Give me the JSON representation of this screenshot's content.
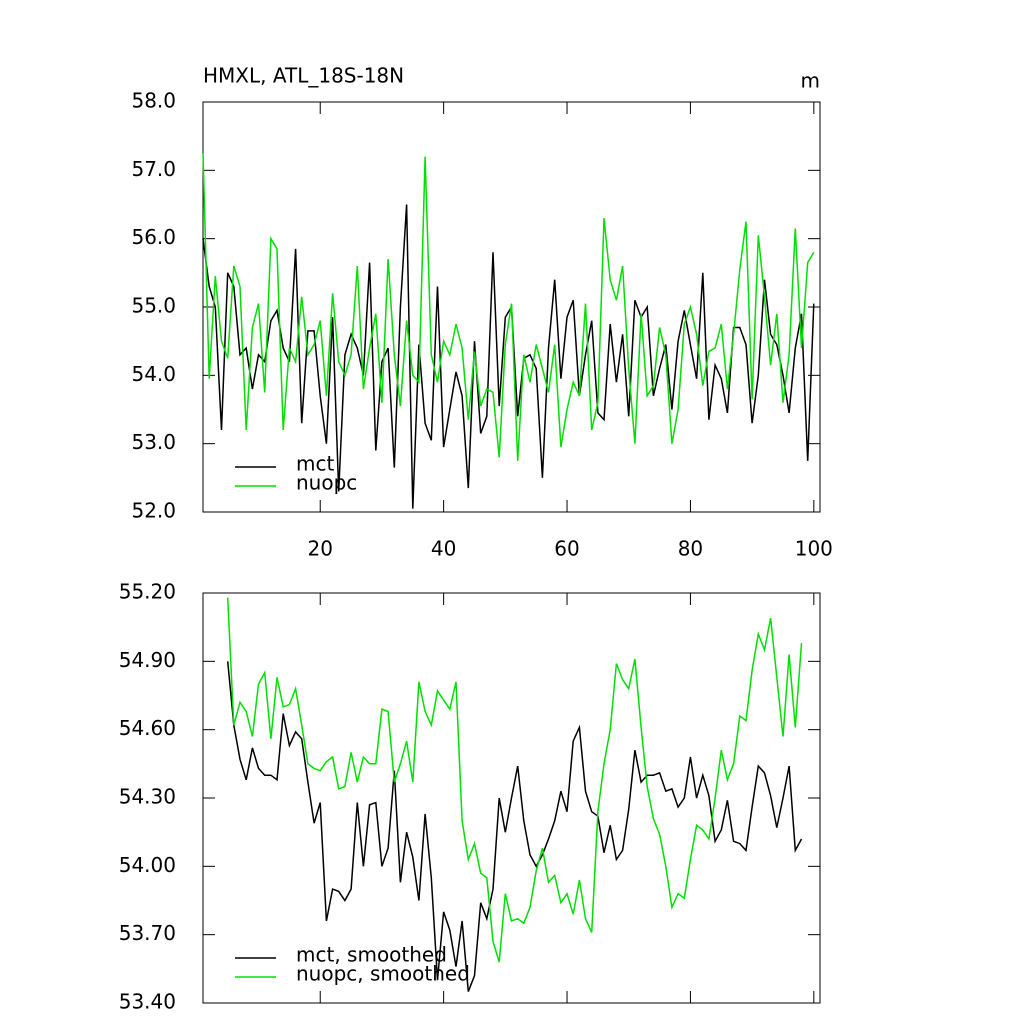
{
  "chart_data": [
    {
      "type": "line",
      "title": "HMXL, ATL_18S-18N",
      "units": "m",
      "x": [
        1,
        2,
        3,
        4,
        5,
        6,
        7,
        8,
        9,
        10,
        11,
        12,
        13,
        14,
        15,
        16,
        17,
        18,
        19,
        20,
        21,
        22,
        23,
        24,
        25,
        26,
        27,
        28,
        29,
        30,
        31,
        32,
        33,
        34,
        35,
        36,
        37,
        38,
        39,
        40,
        41,
        42,
        43,
        44,
        45,
        46,
        47,
        48,
        49,
        50,
        51,
        52,
        53,
        54,
        55,
        56,
        57,
        58,
        59,
        60,
        61,
        62,
        63,
        64,
        65,
        66,
        67,
        68,
        69,
        70,
        71,
        72,
        73,
        74,
        75,
        76,
        77,
        78,
        79,
        80,
        81,
        82,
        83,
        84,
        85,
        86,
        87,
        88,
        89,
        90,
        91,
        92,
        93,
        94,
        95,
        96,
        97,
        98,
        99,
        100
      ],
      "series": [
        {
          "name": "mct",
          "color": "#000000",
          "values": [
            56.0,
            55.3,
            55.0,
            53.2,
            55.5,
            55.3,
            54.3,
            54.4,
            53.8,
            54.3,
            54.2,
            54.8,
            54.95,
            54.4,
            54.2,
            55.85,
            53.3,
            54.65,
            54.65,
            53.7,
            53.0,
            54.85,
            52.3,
            54.3,
            54.6,
            54.4,
            54.0,
            55.65,
            52.9,
            54.2,
            54.4,
            52.65,
            55.0,
            56.5,
            52.05,
            54.45,
            53.3,
            53.05,
            55.3,
            52.95,
            53.5,
            54.05,
            53.7,
            52.35,
            54.5,
            53.15,
            53.4,
            55.8,
            53.55,
            54.85,
            55.0,
            53.4,
            54.25,
            54.3,
            54.1,
            52.5,
            54.4,
            55.4,
            53.95,
            54.85,
            55.1,
            53.7,
            54.3,
            54.8,
            53.45,
            53.35,
            54.75,
            53.9,
            54.6,
            53.4,
            55.1,
            54.85,
            55.0,
            53.7,
            54.1,
            54.45,
            53.5,
            54.5,
            54.95,
            54.45,
            53.95,
            55.5,
            53.35,
            54.15,
            53.95,
            53.45,
            54.7,
            54.7,
            54.45,
            53.3,
            54.0,
            55.4,
            54.6,
            54.45,
            54.0,
            53.45,
            54.4,
            54.9,
            52.75,
            55.05
          ]
        },
        {
          "name": "nuopc",
          "color": "#00e000",
          "values": [
            57.25,
            53.95,
            55.45,
            54.5,
            54.25,
            55.6,
            55.3,
            53.2,
            54.7,
            55.05,
            53.75,
            56.0,
            55.85,
            53.2,
            54.4,
            54.2,
            55.15,
            54.3,
            54.45,
            54.8,
            53.7,
            55.2,
            54.2,
            54.0,
            54.3,
            55.6,
            53.8,
            54.4,
            54.9,
            53.6,
            55.7,
            54.3,
            53.55,
            54.8,
            54.0,
            53.9,
            57.2,
            54.3,
            53.9,
            54.5,
            54.3,
            54.75,
            54.4,
            53.35,
            54.35,
            53.55,
            53.8,
            53.75,
            52.8,
            54.45,
            55.05,
            52.75,
            54.3,
            53.9,
            54.45,
            54.1,
            53.75,
            54.45,
            52.95,
            53.5,
            53.9,
            53.7,
            55.05,
            53.2,
            53.6,
            56.3,
            55.4,
            55.1,
            55.6,
            54.1,
            53.0,
            54.9,
            53.7,
            53.85,
            54.7,
            54.3,
            53.0,
            53.5,
            54.75,
            55.0,
            54.6,
            53.85,
            54.35,
            54.4,
            54.75,
            53.8,
            54.6,
            55.55,
            56.25,
            53.65,
            56.05,
            55.15,
            54.15,
            54.9,
            53.6,
            54.3,
            56.15,
            54.4,
            55.65,
            55.8
          ]
        }
      ],
      "xlim": [
        1,
        101
      ],
      "xticks": [
        20,
        40,
        60,
        80,
        100
      ],
      "show_xtick_labels": true,
      "ylim": [
        52,
        58
      ],
      "yticks": [
        {
          "value": 52,
          "label": "52.0"
        },
        {
          "value": 53,
          "label": "53.0"
        },
        {
          "value": 54,
          "label": "54.0"
        },
        {
          "value": 55,
          "label": "55.0"
        },
        {
          "value": 56,
          "label": "56.0"
        },
        {
          "value": 57,
          "label": "57.0"
        },
        {
          "value": 58,
          "label": "58.0"
        }
      ],
      "legend": "lower left"
    },
    {
      "type": "line",
      "x": [
        5,
        6,
        7,
        8,
        9,
        10,
        11,
        12,
        13,
        14,
        15,
        16,
        17,
        18,
        19,
        20,
        21,
        22,
        23,
        24,
        25,
        26,
        27,
        28,
        29,
        30,
        31,
        32,
        33,
        34,
        35,
        36,
        37,
        38,
        39,
        40,
        41,
        42,
        43,
        44,
        45,
        46,
        47,
        48,
        49,
        50,
        51,
        52,
        53,
        54,
        55,
        56,
        57,
        58,
        59,
        60,
        61,
        62,
        63,
        64,
        65,
        66,
        67,
        68,
        69,
        70,
        71,
        72,
        73,
        74,
        75,
        76,
        77,
        78,
        79,
        80,
        81,
        82,
        83,
        84,
        85,
        86,
        87,
        88,
        89,
        90,
        91,
        92,
        93,
        94,
        95,
        96,
        97,
        98
      ],
      "series": [
        {
          "name": "mct, smoothed",
          "color": "#000000",
          "values": [
            54.9,
            54.62,
            54.47,
            54.38,
            54.52,
            54.43,
            54.4,
            54.4,
            54.38,
            54.67,
            54.53,
            54.59,
            54.56,
            54.37,
            54.19,
            54.28,
            53.76,
            53.9,
            53.89,
            53.85,
            53.9,
            54.28,
            54.0,
            54.27,
            54.28,
            54.0,
            54.08,
            54.42,
            53.93,
            54.15,
            54.04,
            53.85,
            54.23,
            53.95,
            53.5,
            53.8,
            53.72,
            53.56,
            53.76,
            53.45,
            53.52,
            53.84,
            53.77,
            53.9,
            54.3,
            54.15,
            54.3,
            54.44,
            54.2,
            54.05,
            54.0,
            54.05,
            54.12,
            54.2,
            54.33,
            54.24,
            54.55,
            54.61,
            54.33,
            54.24,
            54.22,
            54.06,
            54.18,
            54.03,
            54.07,
            54.25,
            54.51,
            54.37,
            54.4,
            54.4,
            54.41,
            54.33,
            54.34,
            54.26,
            54.3,
            54.48,
            54.3,
            54.4,
            54.31,
            54.11,
            54.16,
            54.29,
            54.11,
            54.1,
            54.07,
            54.26,
            54.44,
            54.41,
            54.31,
            54.17,
            54.3,
            54.44,
            54.07,
            54.12
          ]
        },
        {
          "name": "nuopc, smoothed",
          "color": "#00e000",
          "values": [
            55.18,
            54.62,
            54.72,
            54.68,
            54.57,
            54.8,
            54.85,
            54.56,
            54.83,
            54.7,
            54.71,
            54.78,
            54.62,
            54.45,
            54.43,
            54.42,
            54.46,
            54.48,
            54.34,
            54.35,
            54.5,
            54.37,
            54.48,
            54.45,
            54.45,
            54.69,
            54.68,
            54.37,
            54.45,
            54.55,
            54.37,
            54.81,
            54.68,
            54.62,
            54.77,
            54.73,
            54.69,
            54.81,
            54.2,
            54.03,
            54.1,
            53.97,
            53.95,
            53.67,
            53.58,
            53.88,
            53.76,
            53.77,
            53.75,
            53.82,
            53.98,
            54.08,
            53.93,
            53.96,
            53.84,
            53.88,
            53.79,
            53.94,
            53.77,
            53.71,
            54.24,
            54.45,
            54.6,
            54.89,
            54.82,
            54.78,
            54.91,
            54.61,
            54.35,
            54.21,
            54.14,
            54.0,
            53.82,
            53.88,
            53.86,
            54.03,
            54.18,
            54.16,
            54.12,
            54.3,
            54.51,
            54.38,
            54.45,
            54.66,
            54.64,
            54.86,
            55.02,
            54.95,
            55.09,
            54.83,
            54.57,
            54.93,
            54.61,
            54.98
          ]
        }
      ],
      "xlim": [
        1,
        101
      ],
      "xticks": [
        20,
        40,
        60,
        80,
        100
      ],
      "show_xtick_labels": false,
      "ylim": [
        53.4,
        55.2
      ],
      "yticks": [
        {
          "value": 53.4,
          "label": "53.40"
        },
        {
          "value": 53.7,
          "label": "53.70"
        },
        {
          "value": 54.0,
          "label": "54.00"
        },
        {
          "value": 54.3,
          "label": "54.30"
        },
        {
          "value": 54.6,
          "label": "54.60"
        },
        {
          "value": 54.9,
          "label": "54.90"
        },
        {
          "value": 55.2,
          "label": "55.20"
        }
      ],
      "legend": "lower left"
    }
  ]
}
